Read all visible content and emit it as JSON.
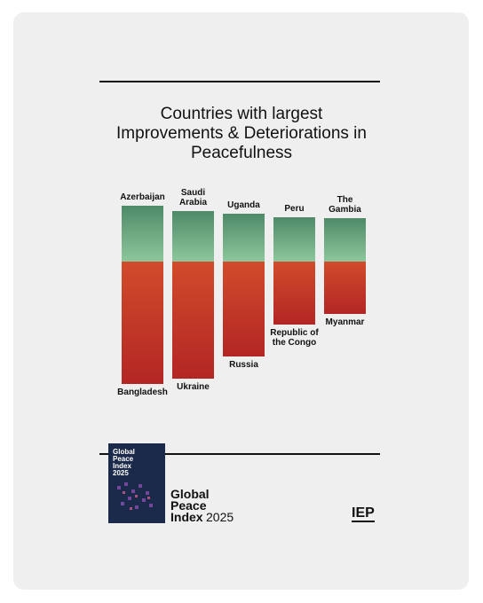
{
  "chart_data": {
    "type": "diverging-bar",
    "title": "Countries with largest Improvements & Deteriorations in Peacefulness",
    "series": [
      {
        "name": "Improvements",
        "color": "#5a9a72",
        "categories": [
          "Azerbaijan",
          "Saudi Arabia",
          "Uganda",
          "Peru",
          "The Gambia"
        ],
        "values": [
          63,
          57,
          54,
          50,
          49
        ]
      },
      {
        "name": "Deteriorations",
        "color": "#c53a2a",
        "categories": [
          "Bangladesh",
          "Ukraine",
          "Russia",
          "Republic of the Congo",
          "Myanmar"
        ],
        "values": [
          -138,
          -132,
          -107,
          -71,
          -59
        ]
      }
    ],
    "ylim": [
      -140,
      70
    ]
  },
  "footer": {
    "cover_title": "Global Peace Index 2025",
    "brand": "Global Peace Index",
    "year": "2025",
    "logo": "IEP"
  }
}
